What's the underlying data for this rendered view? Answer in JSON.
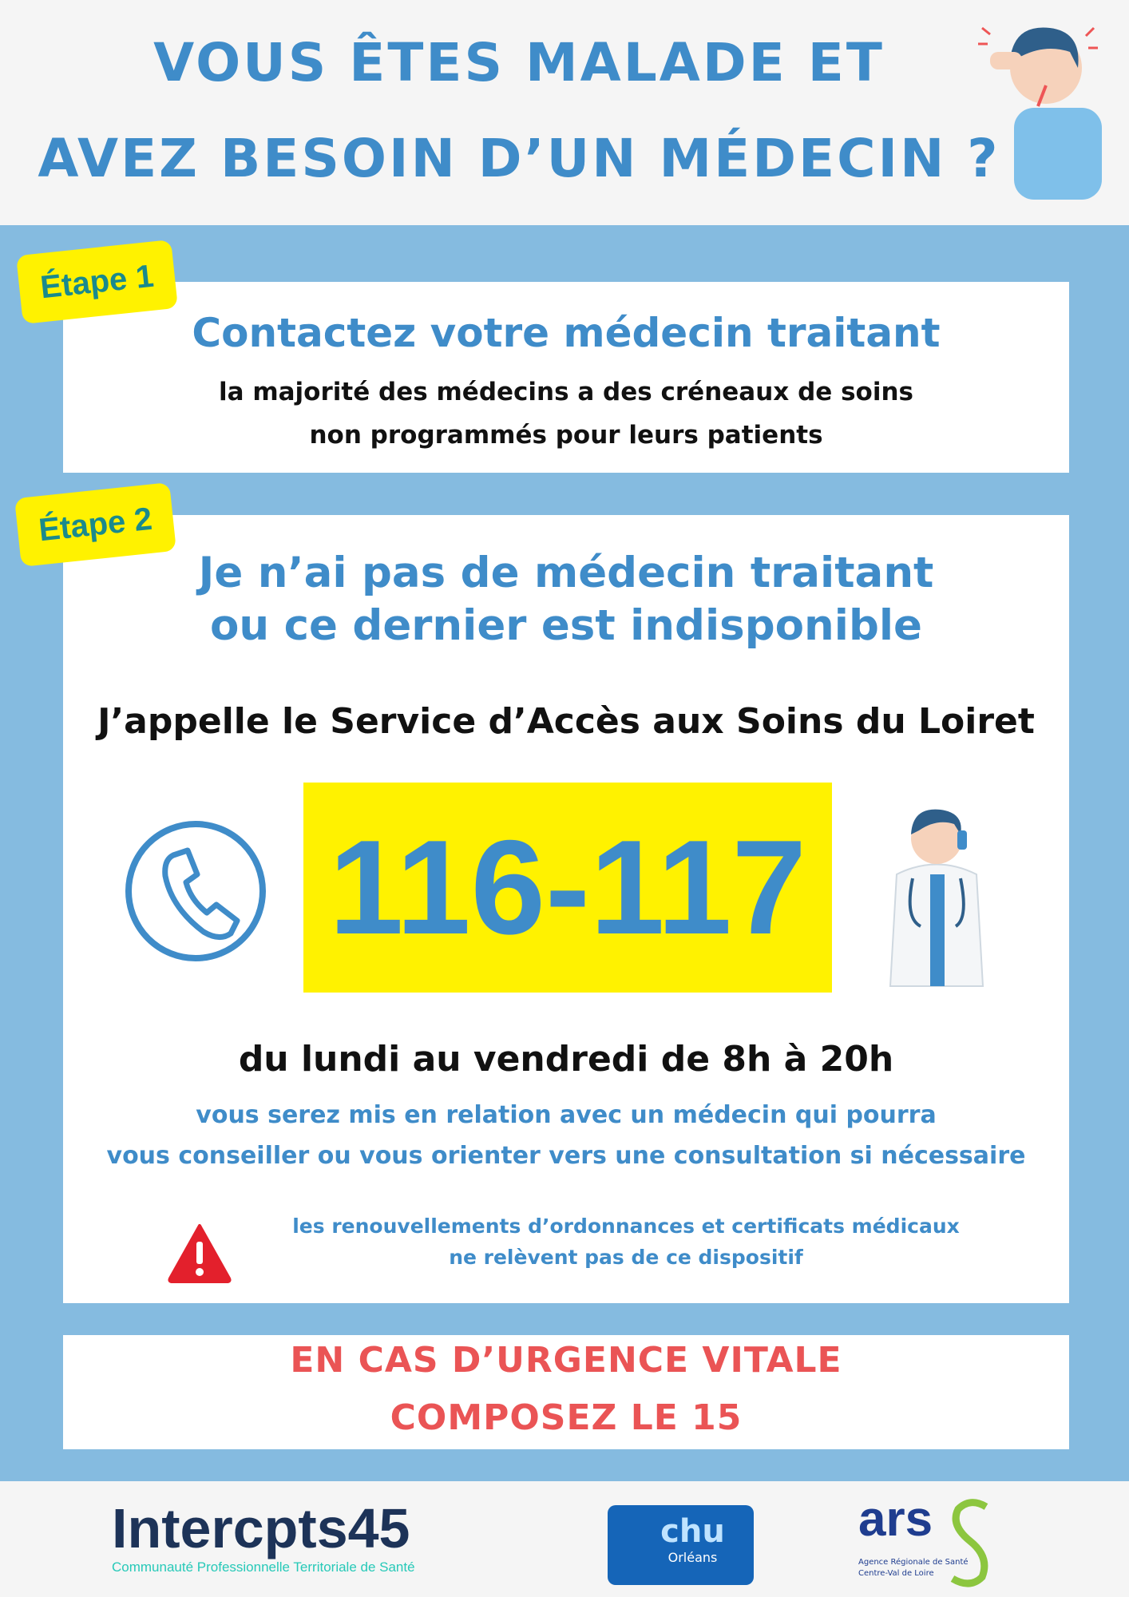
{
  "header": {
    "title_line1": "VOUS ÊTES MALADE ET",
    "title_line2": "AVEZ BESOIN D’UN MÉDECIN ?",
    "illustration": "sick-person-with-thermometer"
  },
  "step1": {
    "badge": "Étape 1",
    "heading": "Contactez votre médecin traitant",
    "text_line1": "la majorité des médecins a des créneaux de soins",
    "text_line2": "non programmés pour leurs patients"
  },
  "step2": {
    "badge": "Étape 2",
    "heading_line1": "Je n’ai pas de médecin traitant",
    "heading_line2": "ou ce dernier est indisponible",
    "call_text": "J’appelle le Service d’Accès aux Soins du Loiret",
    "phone_number": "116-117",
    "phone_icon": "phone-icon",
    "hours": "du lundi au vendredi de 8h à 20h",
    "info_line1": "vous serez mis en relation avec un médecin qui pourra",
    "info_line2": "vous conseiller ou vous orienter vers une consultation si nécessaire",
    "warning_line1": "les renouvellements d’ordonnances et certificats médicaux",
    "warning_line2": "ne relèvent pas de ce dispositif",
    "warning_icon": "warning-icon"
  },
  "emergency": {
    "line1": "EN CAS D’URGENCE VITALE",
    "line2": "COMPOSEZ LE 15"
  },
  "footer": {
    "logo1_name": "Intercpts45",
    "logo1_subtitle": "Communauté Professionnelle Territoriale de Santé",
    "logo2_name": "chu",
    "logo2_subtitle": "Orléans",
    "logo3_name": "ars",
    "logo3_line1": "Agence Régionale de Santé",
    "logo3_line2": "Centre-Val de Loire"
  },
  "colors": {
    "accent_blue": "#3f8cc9",
    "band_blue": "#85bbe0",
    "yellow": "#fff200",
    "red": "#ea5455",
    "teal": "#1a8a8c"
  }
}
